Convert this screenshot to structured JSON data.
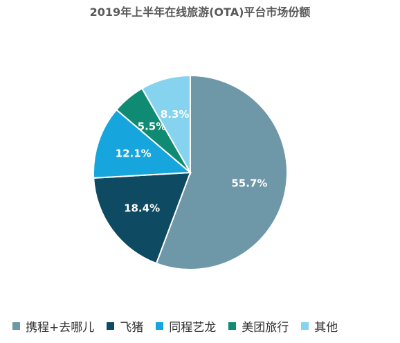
{
  "chart_data": {
    "type": "pie",
    "title": "2019年上半年在线旅游(OTA)平台市场份额",
    "legend_position": "bottom",
    "series": [
      {
        "name": "携程+去哪儿",
        "value": 55.7,
        "label": "55.7%",
        "color": "#6e97a8"
      },
      {
        "name": "飞猪",
        "value": 18.4,
        "label": "18.4%",
        "color": "#0e4a61"
      },
      {
        "name": "同程艺龙",
        "value": 12.1,
        "label": "12.1%",
        "color": "#16a5dc"
      },
      {
        "name": "美团旅行",
        "value": 5.5,
        "label": "5.5%",
        "color": "#0f8a73"
      },
      {
        "name": "其他",
        "value": 8.3,
        "label": "8.3%",
        "color": "#86d3ef"
      }
    ]
  }
}
